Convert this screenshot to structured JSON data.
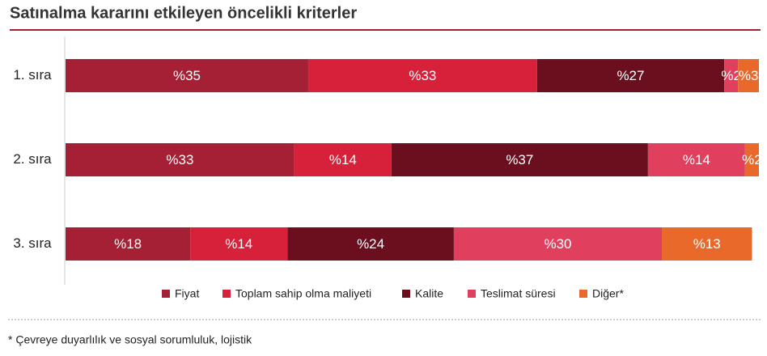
{
  "chart_data": {
    "type": "stacked-bar-horizontal",
    "title": "Satınalma kararını etkileyen öncelikli kriterler",
    "categories": [
      "1. sıra",
      "2. sıra",
      "3. sıra"
    ],
    "series": [
      {
        "name": "Fiyat",
        "color": "#a51f35",
        "values": [
          35,
          33,
          18
        ],
        "value_labels": [
          "%35",
          "%33",
          "%18"
        ]
      },
      {
        "name": "Toplam sahip olma maliyeti",
        "color": "#d7213b",
        "values": [
          33,
          14,
          14
        ],
        "value_labels": [
          "%33",
          "%14",
          "%14"
        ]
      },
      {
        "name": "Kalite",
        "color": "#6b0f1f",
        "values": [
          27,
          37,
          24
        ],
        "value_labels": [
          "%27",
          "%37",
          "%24"
        ]
      },
      {
        "name": "Teslimat süresi",
        "color": "#e0405e",
        "values": [
          2,
          14,
          30
        ],
        "value_labels": [
          "%2",
          "%14",
          "%30"
        ]
      },
      {
        "name": "Diğer*",
        "color": "#e8692a",
        "values": [
          3,
          2,
          13
        ],
        "value_labels": [
          "%3",
          "%2",
          "%13"
        ]
      }
    ],
    "xlim": [
      0,
      100
    ],
    "legend": "bottom",
    "footnote": "* Çevreye duyarlılık ve sosyal sorumluluk, lojistik"
  }
}
